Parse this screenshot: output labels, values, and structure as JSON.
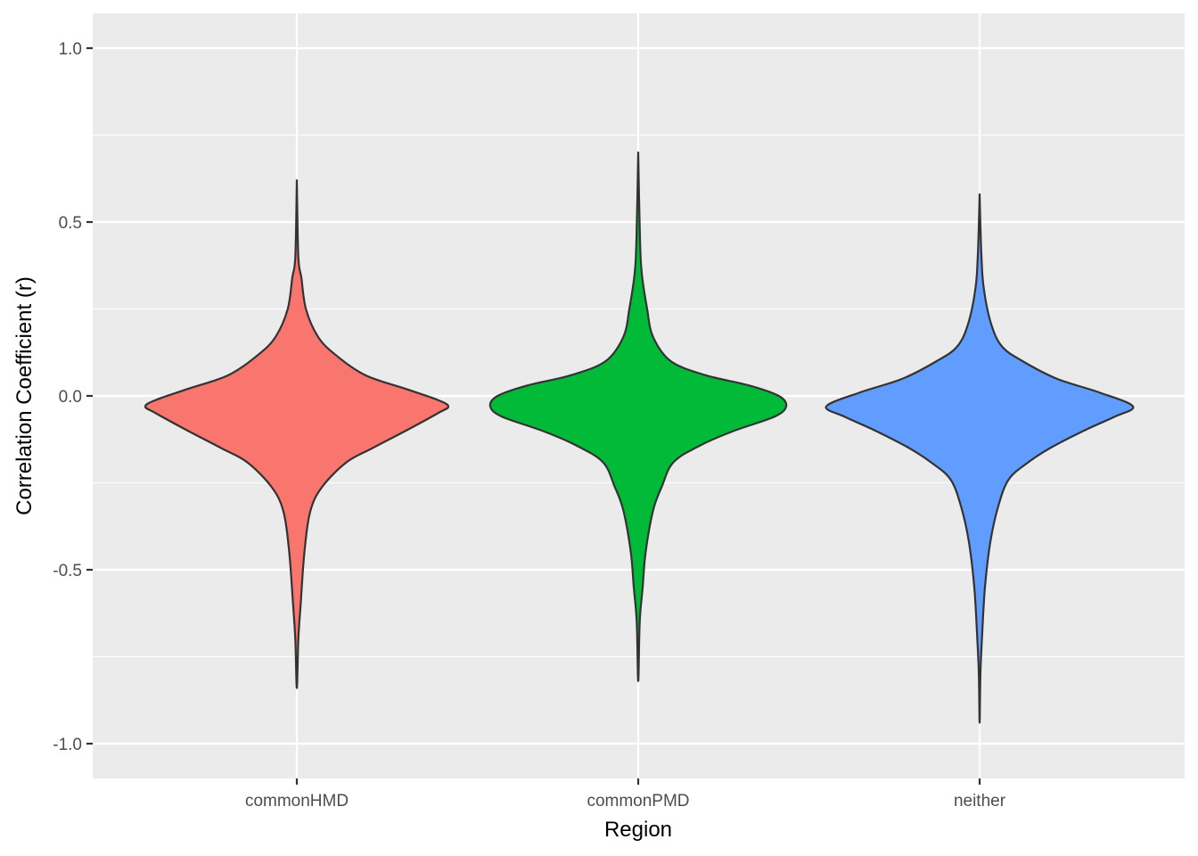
{
  "chart_data": {
    "type": "violin",
    "title": "",
    "xlabel": "Region",
    "ylabel": "Correlation Coefficient (r)",
    "categories": [
      "commonHMD",
      "commonPMD",
      "neither"
    ],
    "ylim": [
      -1.1,
      1.1
    ],
    "yticks": [
      -1.0,
      -0.5,
      0.0,
      0.5,
      1.0
    ],
    "ytick_labels": [
      "-1.0",
      "-0.5",
      "0.0",
      "0.5",
      "1.0"
    ],
    "grid": true,
    "legend": null,
    "series": [
      {
        "name": "commonHMD",
        "color": "#F8766D",
        "max": 0.62,
        "min": -0.84,
        "mode": -0.03,
        "profile": [
          [
            0.62,
            0.0
          ],
          [
            0.4,
            0.01
          ],
          [
            0.34,
            0.03
          ],
          [
            0.25,
            0.06
          ],
          [
            0.17,
            0.14
          ],
          [
            0.12,
            0.25
          ],
          [
            0.06,
            0.45
          ],
          [
            0.02,
            0.72
          ],
          [
            -0.01,
            0.92
          ],
          [
            -0.03,
            1.0
          ],
          [
            -0.05,
            0.93
          ],
          [
            -0.1,
            0.72
          ],
          [
            -0.15,
            0.5
          ],
          [
            -0.19,
            0.33
          ],
          [
            -0.26,
            0.17
          ],
          [
            -0.33,
            0.09
          ],
          [
            -0.45,
            0.05
          ],
          [
            -0.6,
            0.025
          ],
          [
            -0.7,
            0.01
          ],
          [
            -0.84,
            0.0
          ]
        ]
      },
      {
        "name": "commonPMD",
        "color": "#00BA38",
        "max": 0.7,
        "min": -0.82,
        "mode": -0.03,
        "profile": [
          [
            0.7,
            0.0
          ],
          [
            0.45,
            0.012
          ],
          [
            0.35,
            0.025
          ],
          [
            0.25,
            0.06
          ],
          [
            0.17,
            0.1
          ],
          [
            0.1,
            0.22
          ],
          [
            0.06,
            0.45
          ],
          [
            0.03,
            0.75
          ],
          [
            0.0,
            0.95
          ],
          [
            -0.03,
            1.0
          ],
          [
            -0.06,
            0.92
          ],
          [
            -0.1,
            0.65
          ],
          [
            -0.14,
            0.43
          ],
          [
            -0.19,
            0.24
          ],
          [
            -0.26,
            0.16
          ],
          [
            -0.33,
            0.1
          ],
          [
            -0.45,
            0.05
          ],
          [
            -0.55,
            0.03
          ],
          [
            -0.65,
            0.01
          ],
          [
            -0.82,
            0.0
          ]
        ]
      },
      {
        "name": "neither",
        "color": "#619CFF",
        "max": 0.58,
        "min": -0.94,
        "mode": -0.03,
        "profile": [
          [
            0.58,
            0.0
          ],
          [
            0.4,
            0.012
          ],
          [
            0.3,
            0.03
          ],
          [
            0.2,
            0.08
          ],
          [
            0.14,
            0.15
          ],
          [
            0.1,
            0.28
          ],
          [
            0.05,
            0.5
          ],
          [
            0.01,
            0.78
          ],
          [
            -0.03,
            1.0
          ],
          [
            -0.06,
            0.88
          ],
          [
            -0.1,
            0.68
          ],
          [
            -0.15,
            0.46
          ],
          [
            -0.19,
            0.32
          ],
          [
            -0.24,
            0.19
          ],
          [
            -0.32,
            0.12
          ],
          [
            -0.42,
            0.07
          ],
          [
            -0.55,
            0.035
          ],
          [
            -0.7,
            0.015
          ],
          [
            -0.8,
            0.005
          ],
          [
            -0.94,
            0.0
          ]
        ]
      }
    ]
  },
  "colors": {
    "panel_bg": "#EBEBEB",
    "grid_major": "#FFFFFF",
    "outline": "#333333",
    "tick_text": "#4D4D4D"
  }
}
